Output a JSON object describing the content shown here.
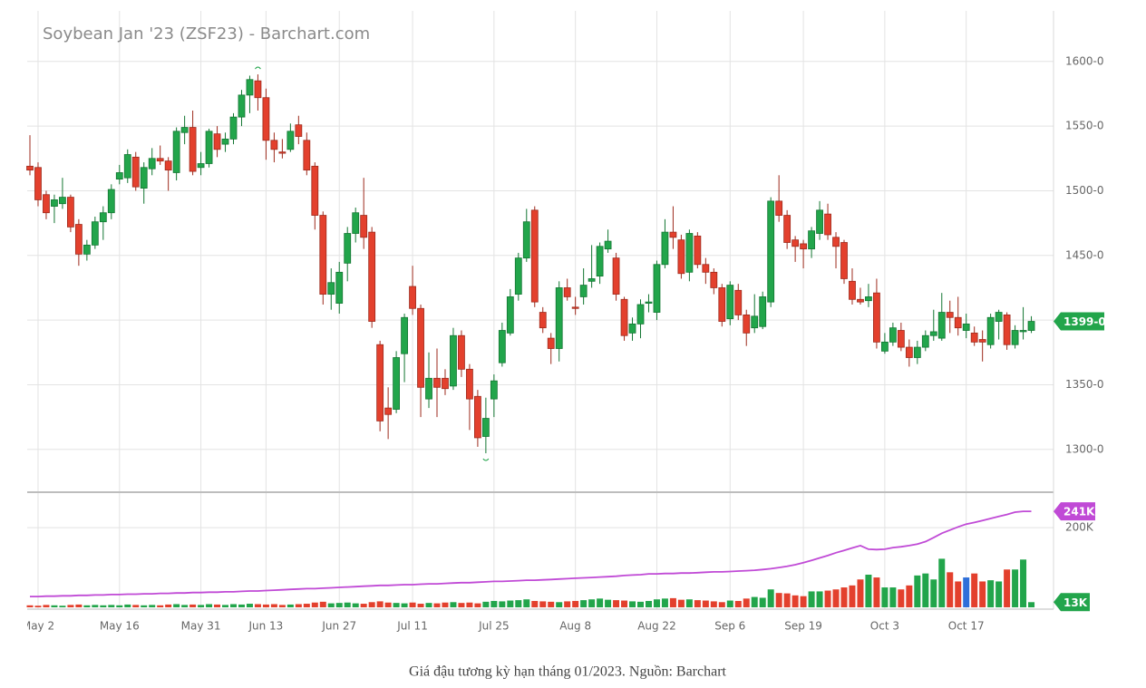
{
  "chart_data": {
    "type": "candlestick",
    "title": "Soybean Jan '23 (ZSF23) - Barchart.com",
    "caption": "Giá đậu tương kỳ hạn tháng 01/2023. Nguồn: Barchart",
    "categories": [
      null,
      "May 2",
      null,
      null,
      null,
      null,
      null,
      null,
      null,
      null,
      null,
      "May 16",
      null,
      null,
      null,
      null,
      null,
      null,
      null,
      null,
      null,
      "May 31",
      null,
      null,
      null,
      null,
      null,
      null,
      null,
      "Jun 13",
      null,
      null,
      null,
      null,
      null,
      null,
      null,
      null,
      "Jun 27",
      null,
      null,
      null,
      null,
      null,
      null,
      null,
      null,
      "Jul 11",
      null,
      null,
      null,
      null,
      null,
      null,
      null,
      null,
      null,
      "Jul 25",
      null,
      null,
      null,
      null,
      null,
      null,
      null,
      null,
      null,
      "Aug 8",
      null,
      null,
      null,
      null,
      null,
      null,
      null,
      null,
      null,
      "Aug 22",
      null,
      null,
      null,
      null,
      null,
      null,
      null,
      null,
      "Sep 6",
      null,
      null,
      null,
      null,
      null,
      null,
      null,
      null,
      "Sep 19",
      null,
      null,
      null,
      null,
      null,
      null,
      null,
      null,
      null,
      "Oct 3",
      null,
      null,
      null,
      null,
      null,
      null,
      null,
      null,
      null,
      "Oct 17",
      null,
      null,
      null,
      null,
      null,
      null,
      null,
      null
    ],
    "open": [
      1519,
      1518,
      1497,
      1488,
      1490,
      1495,
      1474,
      1451,
      1458,
      1476,
      1483,
      1509,
      1510,
      1526,
      1502,
      1517,
      1525,
      1523,
      1514,
      1545,
      1549,
      1518,
      1521,
      1544,
      1536,
      1540,
      1557,
      1574,
      1585,
      1572,
      1539,
      1530,
      1532,
      1551,
      1539,
      1519,
      1481,
      1420,
      1413,
      1444,
      1467,
      1481,
      1468,
      1381,
      1332,
      1331,
      1374,
      1426,
      1409,
      1339,
      1355,
      1355,
      1349,
      1388,
      1362,
      1341,
      1310,
      1339,
      1367,
      1390,
      1420,
      1448,
      1485,
      1406,
      1386,
      1378,
      1425,
      1410,
      1418,
      1430,
      1434,
      1455,
      1448,
      1416,
      1390,
      1397,
      1413,
      1406,
      1443,
      1468,
      1462,
      1437,
      1465,
      1443,
      1437,
      1425,
      1401,
      1423,
      1404,
      1394,
      1395,
      1414,
      1492,
      1481,
      1462,
      1459,
      1455,
      1467,
      1482,
      1464,
      1460,
      1430,
      1416,
      1415,
      1421,
      1376,
      1383,
      1392,
      1379,
      1371,
      1379,
      1388,
      1386,
      1406,
      1402,
      1392,
      1390,
      1385,
      1381,
      1399,
      1404,
      1381,
      1391,
      1392
    ],
    "high": [
      1543,
      1522,
      1500,
      1497,
      1510,
      1497,
      1478,
      1462,
      1480,
      1488,
      1505,
      1520,
      1532,
      1530,
      1522,
      1533,
      1535,
      1526,
      1549,
      1558,
      1562,
      1530,
      1548,
      1550,
      1545,
      1560,
      1578,
      1589,
      1590,
      1579,
      1545,
      1540,
      1552,
      1558,
      1545,
      1522,
      1484,
      1440,
      1445,
      1472,
      1487,
      1510,
      1472,
      1384,
      1348,
      1376,
      1405,
      1442,
      1412,
      1375,
      1378,
      1362,
      1394,
      1392,
      1366,
      1346,
      1340,
      1358,
      1398,
      1424,
      1452,
      1486,
      1488,
      1410,
      1390,
      1430,
      1432,
      1418,
      1440,
      1458,
      1460,
      1470,
      1452,
      1418,
      1402,
      1416,
      1420,
      1446,
      1478,
      1488,
      1466,
      1470,
      1468,
      1448,
      1440,
      1428,
      1430,
      1428,
      1408,
      1420,
      1422,
      1495,
      1512,
      1485,
      1465,
      1462,
      1472,
      1492,
      1490,
      1468,
      1462,
      1440,
      1425,
      1428,
      1432,
      1390,
      1398,
      1398,
      1385,
      1384,
      1392,
      1408,
      1421,
      1415,
      1418,
      1405,
      1395,
      1392,
      1405,
      1408,
      1406,
      1396,
      1410,
      1403
    ],
    "low": [
      1512,
      1488,
      1478,
      1475,
      1486,
      1468,
      1442,
      1446,
      1455,
      1462,
      1478,
      1505,
      1506,
      1500,
      1490,
      1512,
      1520,
      1500,
      1508,
      1536,
      1512,
      1512,
      1518,
      1526,
      1530,
      1536,
      1550,
      1560,
      1562,
      1524,
      1522,
      1525,
      1530,
      1536,
      1512,
      1470,
      1412,
      1408,
      1405,
      1430,
      1460,
      1455,
      1394,
      1314,
      1308,
      1328,
      1352,
      1404,
      1325,
      1332,
      1325,
      1342,
      1346,
      1356,
      1315,
      1302,
      1297,
      1325,
      1364,
      1388,
      1415,
      1445,
      1410,
      1390,
      1366,
      1368,
      1415,
      1404,
      1412,
      1425,
      1428,
      1452,
      1415,
      1384,
      1384,
      1386,
      1406,
      1400,
      1440,
      1455,
      1432,
      1430,
      1440,
      1428,
      1420,
      1395,
      1396,
      1400,
      1380,
      1390,
      1393,
      1410,
      1476,
      1455,
      1445,
      1440,
      1448,
      1462,
      1462,
      1440,
      1428,
      1412,
      1412,
      1410,
      1378,
      1374,
      1380,
      1376,
      1364,
      1366,
      1376,
      1384,
      1384,
      1390,
      1388,
      1386,
      1380,
      1368,
      1378,
      1385,
      1377,
      1378,
      1385,
      1390
    ],
    "close": [
      1516,
      1493,
      1483,
      1493,
      1495,
      1472,
      1451,
      1458,
      1476,
      1483,
      1501,
      1514,
      1528,
      1503,
      1518,
      1525,
      1523,
      1516,
      1546,
      1549,
      1515,
      1521,
      1546,
      1532,
      1540,
      1557,
      1574,
      1586,
      1572,
      1539,
      1532,
      1529,
      1546,
      1542,
      1516,
      1481,
      1420,
      1429,
      1437,
      1467,
      1483,
      1464,
      1399,
      1322,
      1327,
      1371,
      1402,
      1409,
      1348,
      1355,
      1348,
      1347,
      1388,
      1362,
      1339,
      1309,
      1324,
      1353,
      1392,
      1418,
      1448,
      1476,
      1414,
      1394,
      1378,
      1425,
      1418,
      1409,
      1427,
      1432,
      1457,
      1461,
      1420,
      1388,
      1397,
      1412,
      1414,
      1443,
      1468,
      1464,
      1436,
      1467,
      1443,
      1437,
      1425,
      1399,
      1427,
      1404,
      1390,
      1403,
      1418,
      1492,
      1481,
      1460,
      1457,
      1455,
      1469,
      1485,
      1466,
      1457,
      1432,
      1416,
      1414,
      1418,
      1383,
      1383,
      1394,
      1379,
      1371,
      1379,
      1388,
      1391,
      1406,
      1402,
      1394,
      1397,
      1383,
      1383,
      1402,
      1406,
      1381,
      1392,
      1392,
      1399
    ],
    "last_close_label": "1399-0",
    "up_color": "#22a54b",
    "down_color": "#e3402d",
    "ylim": [
      1269,
      1637
    ],
    "yticks": [
      {
        "value": 1300,
        "label": "1300-0"
      },
      {
        "value": 1350,
        "label": "1350-0"
      },
      {
        "value": 1400,
        "label": "1400-0"
      },
      {
        "value": 1450,
        "label": "1450-0"
      },
      {
        "value": 1500,
        "label": "1500-0"
      },
      {
        "value": 1550,
        "label": "1550-0"
      },
      {
        "value": 1600,
        "label": "1600-0"
      }
    ],
    "grid": true,
    "volume": {
      "values": [
        5,
        4,
        6,
        5,
        4,
        6,
        7,
        5,
        6,
        5,
        6,
        5,
        7,
        6,
        5,
        6,
        5,
        7,
        8,
        6,
        7,
        6,
        8,
        7,
        6,
        8,
        7,
        9,
        8,
        7,
        8,
        6,
        7,
        8,
        9,
        12,
        14,
        10,
        11,
        12,
        10,
        9,
        13,
        15,
        12,
        11,
        10,
        12,
        9,
        11,
        10,
        12,
        13,
        11,
        12,
        10,
        14,
        16,
        15,
        17,
        18,
        20,
        16,
        15,
        14,
        13,
        15,
        16,
        18,
        20,
        22,
        19,
        18,
        17,
        15,
        14,
        16,
        20,
        22,
        23,
        19,
        20,
        18,
        17,
        15,
        13,
        17,
        16,
        22,
        26,
        24,
        45,
        36,
        35,
        30,
        28,
        40,
        40,
        42,
        45,
        50,
        55,
        70,
        82,
        75,
        50,
        50,
        45,
        55,
        80,
        85,
        70,
        122,
        88,
        65,
        75,
        85,
        65,
        68,
        65,
        95,
        95,
        120,
        13
      ],
      "colors": [
        "#e3402d",
        "#e3402d",
        "#e3402d",
        "#22a54b",
        "#22a54b",
        "#e3402d",
        "#e3402d",
        "#22a54b",
        "#22a54b",
        "#22a54b",
        "#22a54b",
        "#22a54b",
        "#22a54b",
        "#e3402d",
        "#22a54b",
        "#22a54b",
        "#e3402d",
        "#e3402d",
        "#22a54b",
        "#22a54b",
        "#e3402d",
        "#22a54b",
        "#22a54b",
        "#e3402d",
        "#22a54b",
        "#22a54b",
        "#22a54b",
        "#22a54b",
        "#e3402d",
        "#e3402d",
        "#e3402d",
        "#e3402d",
        "#22a54b",
        "#e3402d",
        "#e3402d",
        "#e3402d",
        "#e3402d",
        "#22a54b",
        "#22a54b",
        "#22a54b",
        "#22a54b",
        "#e3402d",
        "#e3402d",
        "#e3402d",
        "#e3402d",
        "#22a54b",
        "#22a54b",
        "#e3402d",
        "#e3402d",
        "#22a54b",
        "#e3402d",
        "#e3402d",
        "#22a54b",
        "#e3402d",
        "#e3402d",
        "#e3402d",
        "#22a54b",
        "#22a54b",
        "#22a54b",
        "#22a54b",
        "#22a54b",
        "#22a54b",
        "#e3402d",
        "#e3402d",
        "#e3402d",
        "#22a54b",
        "#e3402d",
        "#e3402d",
        "#22a54b",
        "#22a54b",
        "#22a54b",
        "#22a54b",
        "#e3402d",
        "#e3402d",
        "#22a54b",
        "#22a54b",
        "#22a54b",
        "#22a54b",
        "#22a54b",
        "#e3402d",
        "#e3402d",
        "#22a54b",
        "#e3402d",
        "#e3402d",
        "#e3402d",
        "#e3402d",
        "#22a54b",
        "#e3402d",
        "#e3402d",
        "#22a54b",
        "#22a54b",
        "#22a54b",
        "#e3402d",
        "#e3402d",
        "#e3402d",
        "#e3402d",
        "#22a54b",
        "#22a54b",
        "#e3402d",
        "#e3402d",
        "#e3402d",
        "#e3402d",
        "#e3402d",
        "#22a54b",
        "#e3402d",
        "#22a54b",
        "#22a54b",
        "#e3402d",
        "#e3402d",
        "#22a54b",
        "#22a54b",
        "#22a54b",
        "#22a54b",
        "#e3402d",
        "#e3402d",
        "#2e6fd9",
        "#e3402d",
        "#e3402d",
        "#22a54b",
        "#22a54b",
        "#e3402d",
        "#22a54b",
        "#22a54b",
        "#22a54b"
      ],
      "last_label": "13K",
      "label_color": "#22a54b"
    },
    "open_interest": {
      "color": "#c04ad6",
      "values": [
        27,
        27,
        28,
        28,
        29,
        29,
        30,
        30,
        31,
        31,
        32,
        32,
        33,
        33,
        34,
        34,
        35,
        35,
        36,
        36,
        37,
        37,
        38,
        38,
        39,
        39,
        40,
        41,
        41,
        42,
        43,
        44,
        45,
        46,
        47,
        47,
        48,
        49,
        50,
        51,
        52,
        53,
        54,
        55,
        55,
        56,
        57,
        57,
        58,
        59,
        59,
        60,
        61,
        62,
        62,
        63,
        64,
        65,
        65,
        66,
        67,
        68,
        68,
        69,
        70,
        71,
        72,
        73,
        74,
        75,
        76,
        77,
        78,
        80,
        81,
        82,
        84,
        84,
        85,
        85,
        86,
        86,
        87,
        88,
        89,
        89,
        90,
        91,
        92,
        93,
        95,
        97,
        100,
        103,
        107,
        112,
        118,
        124,
        130,
        137,
        143,
        149,
        155,
        146,
        145,
        146,
        150,
        152,
        155,
        159,
        165,
        175,
        186,
        194,
        202,
        209,
        213,
        218,
        223,
        228,
        233,
        239,
        241,
        241
      ],
      "last_label": "241K"
    },
    "y2lim": [
      0,
      280
    ],
    "y2ticks": [
      {
        "value": 200,
        "label": "200K"
      }
    ]
  }
}
